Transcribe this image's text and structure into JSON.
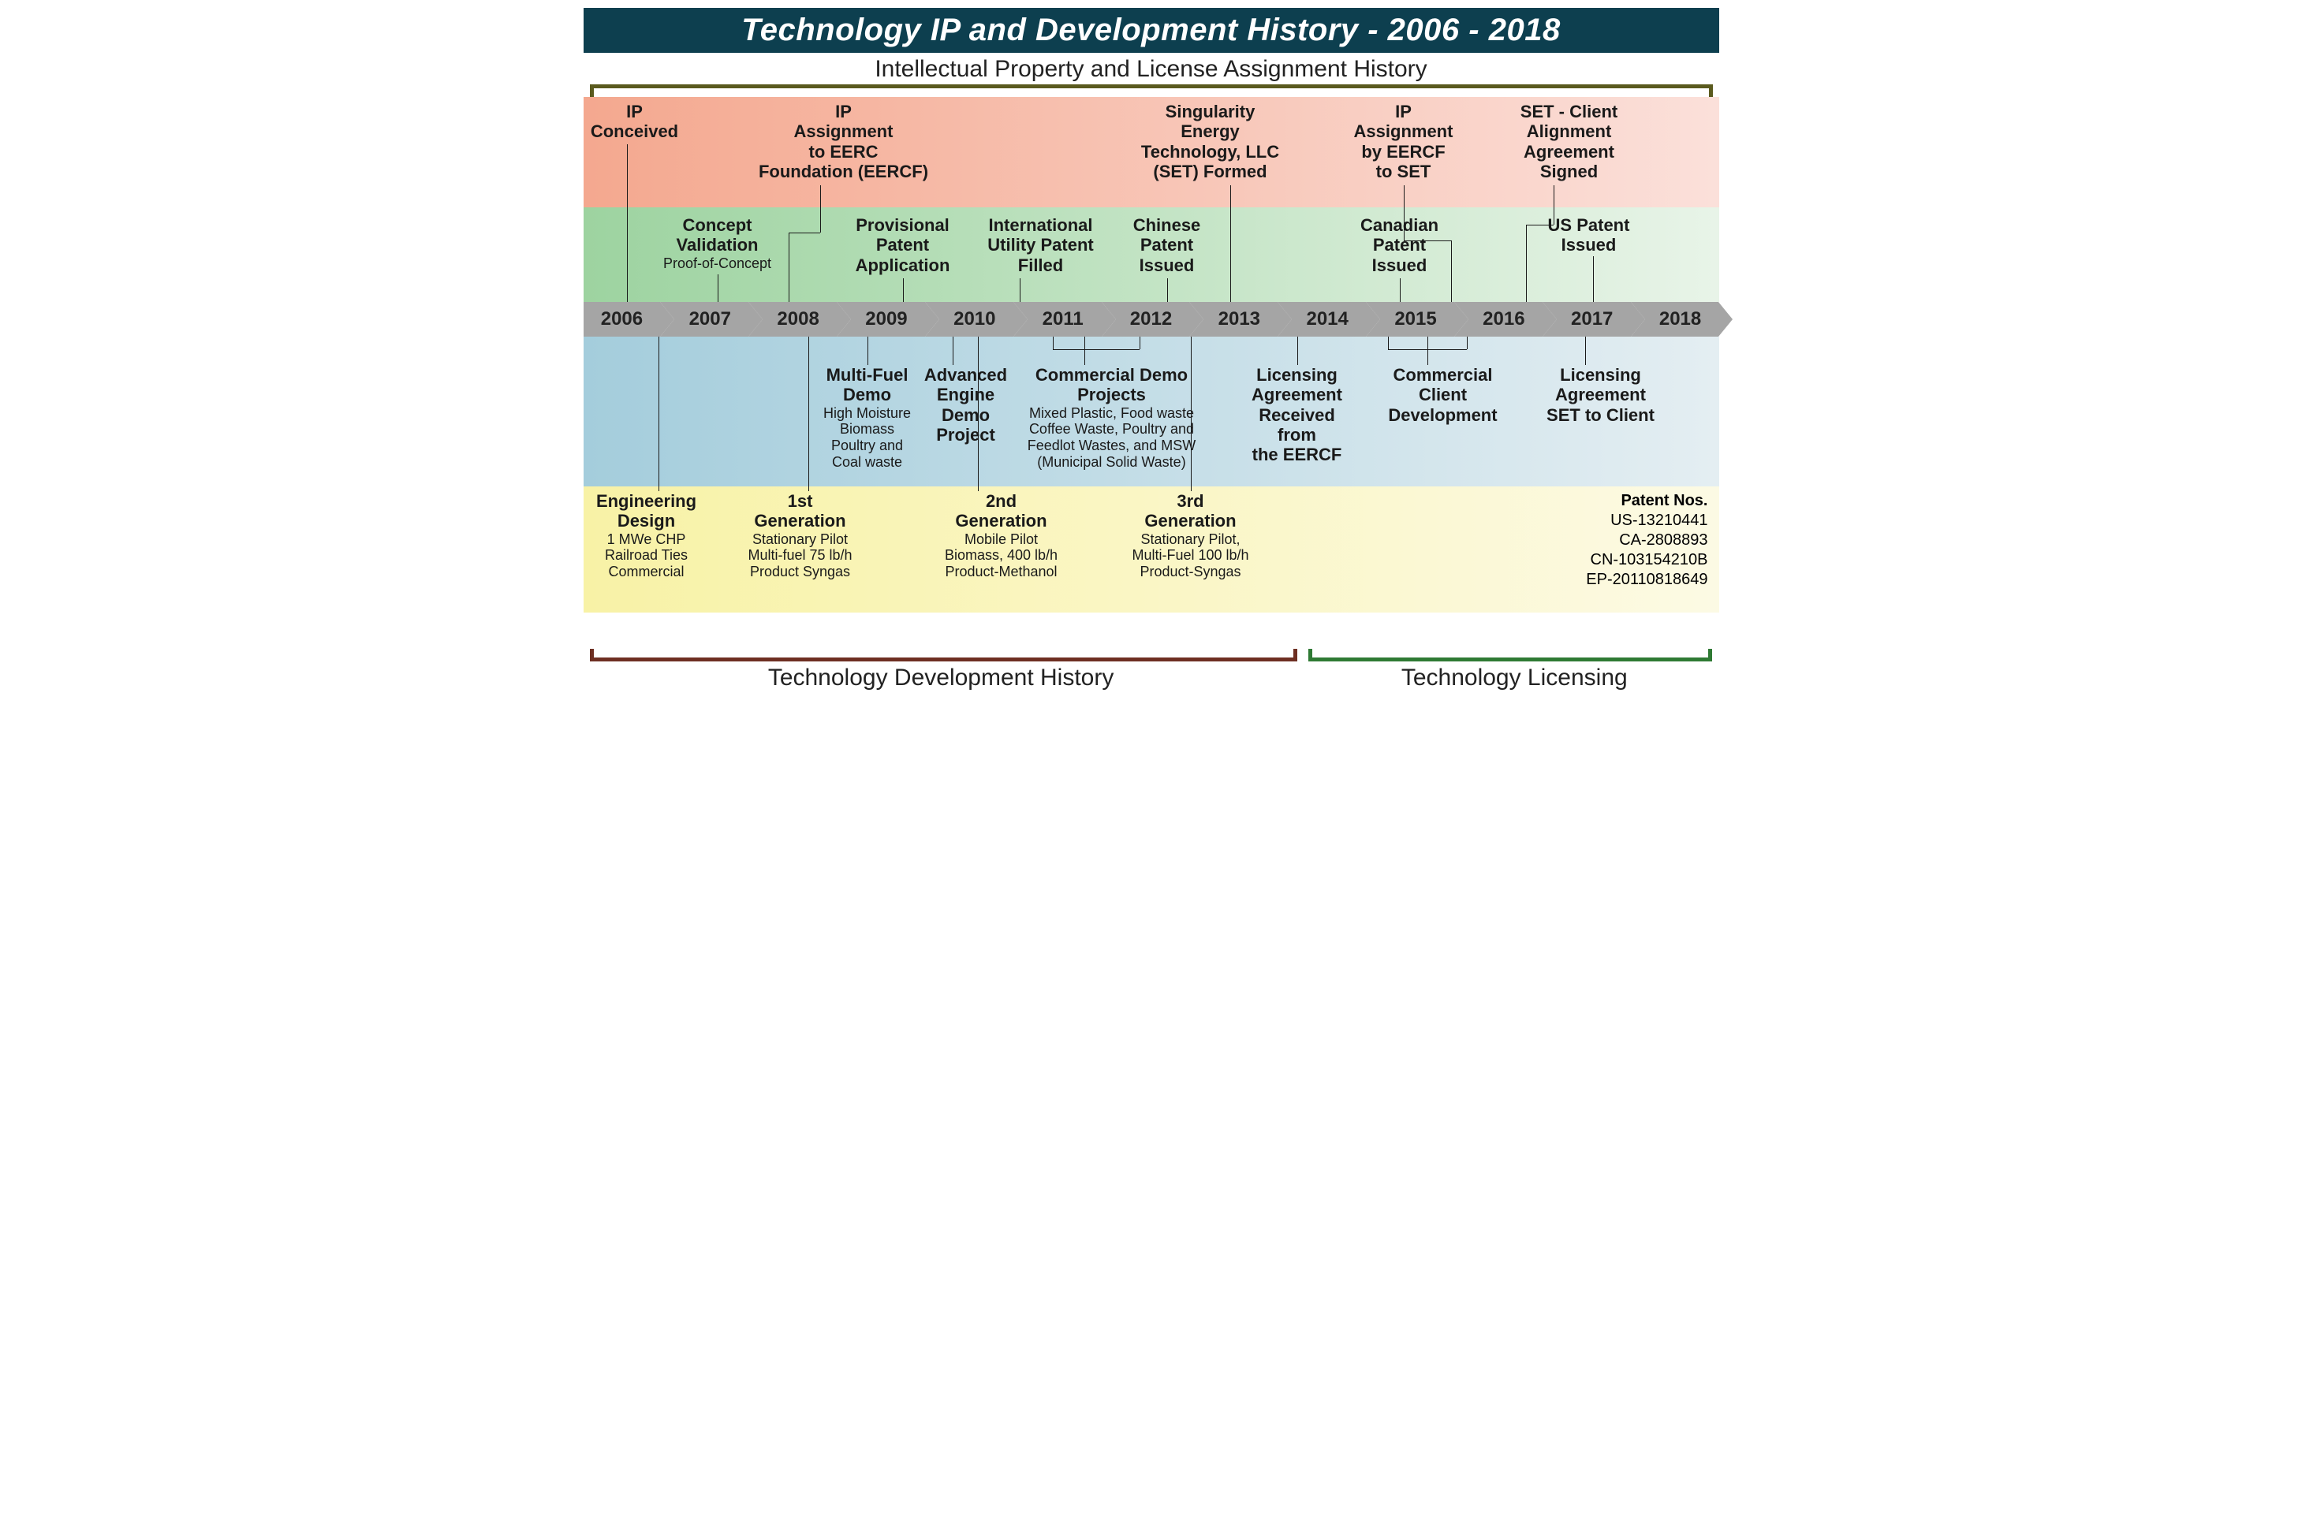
{
  "title": "Technology IP and Development History - 2006 - 2018",
  "subtitle_top": "Intellectual Property and License Assignment History",
  "years": [
    "2006",
    "2007",
    "2008",
    "2009",
    "2010",
    "2011",
    "2012",
    "2013",
    "2014",
    "2015",
    "2016",
    "2017",
    "2018"
  ],
  "colors": {
    "title_bg": "#0d3f4f",
    "band_orange_from": "#f4a88f",
    "band_orange_to": "#fbe0da",
    "band_green_from": "#9dd3a0",
    "band_green_to": "#e8f4e8",
    "band_blue_from": "#a4cddc",
    "band_blue_to": "#e4eef2",
    "band_yellow_from": "#f8f2a6",
    "band_yellow_to": "#fcfae4",
    "axis_fill": "#a5a5a5",
    "top_bracket": "#5a5a1e",
    "dev_bracket": "#6e2f22",
    "lic_bracket": "#2f7a34"
  },
  "top_bracket": {
    "color": "#5a5a1e"
  },
  "events_orange": {
    "ip_conceived": {
      "t1": "IP\nConceived"
    },
    "ip_assignment_eercf": {
      "t1": "IP\nAssignment\nto EERC\nFoundation (EERCF)"
    },
    "set_formed": {
      "t1": "Singularity\nEnergy\nTechnology, LLC\n(SET) Formed"
    },
    "ip_assign_set": {
      "t1": "IP\nAssignment\nby EERCF\nto SET"
    },
    "set_client": {
      "t1": "SET - Client\nAlignment\nAgreement\nSigned"
    }
  },
  "events_green": {
    "concept_validation": {
      "t1": "Concept\nValidation",
      "t2": "Proof-of-Concept"
    },
    "provisional": {
      "t1": "Provisional\nPatent\nApplication"
    },
    "intl_patent": {
      "t1": "International\nUtility Patent\nFilled"
    },
    "chinese_patent": {
      "t1": "Chinese\nPatent\nIssued"
    },
    "canadian_patent": {
      "t1": "Canadian\nPatent\nIssued"
    },
    "us_patent": {
      "t1": "US Patent\nIssued"
    }
  },
  "events_blue": {
    "multifuel_demo": {
      "t1": "Multi-Fuel\nDemo",
      "t2": "High Moisture\nBiomass\nPoultry and\nCoal waste"
    },
    "adv_engine": {
      "t1": "Advanced\nEngine\nDemo\nProject"
    },
    "commercial_demo": {
      "t1": "Commercial Demo\nProjects",
      "t2": "Mixed Plastic, Food waste\nCoffee Waste, Poultry and\nFeedlot Wastes, and MSW\n(Municipal Solid Waste)"
    },
    "licensing_recv": {
      "t1": "Licensing\nAgreement\nReceived\nfrom\nthe EERCF"
    },
    "client_dev": {
      "t1": "Commercial\nClient\nDevelopment"
    },
    "licensing_set_client": {
      "t1": "Licensing\nAgreement\nSET to Client"
    }
  },
  "events_yellow": {
    "eng_design": {
      "t1": "Engineering\nDesign",
      "t2": "1 MWe CHP\nRailroad Ties\nCommercial"
    },
    "gen1": {
      "t1": "1st\nGeneration",
      "t2": "Stationary Pilot\nMulti-fuel 75 lb/h\nProduct Syngas"
    },
    "gen2": {
      "t1": "2nd\nGeneration",
      "t2": "Mobile Pilot\nBiomass, 400 lb/h\nProduct-Methanol"
    },
    "gen3": {
      "t1": "3rd\nGeneration",
      "t2": "Stationary Pilot,\nMulti-Fuel 100 lb/h\nProduct-Syngas"
    }
  },
  "patent_nos": {
    "header": "Patent Nos.",
    "lines": [
      "US-13210441",
      "CA-2808893",
      "CN-103154210B",
      "EP-20110818649"
    ]
  },
  "footer": {
    "dev_label": "Technology Development History",
    "lic_label": "Technology Licensing",
    "dev_color": "#6e2f22",
    "lic_color": "#2f7a34",
    "split_pct": 63
  },
  "layout": {
    "year_count": 13,
    "band_heights": {
      "orange": 140,
      "green": 120,
      "axis": 44,
      "blue": 190,
      "yellow": 160
    },
    "font": {
      "title": 40,
      "subtitle": 30,
      "year": 24,
      "event_bold": 22,
      "event_small": 18,
      "footer": 30,
      "patent": 20
    }
  }
}
